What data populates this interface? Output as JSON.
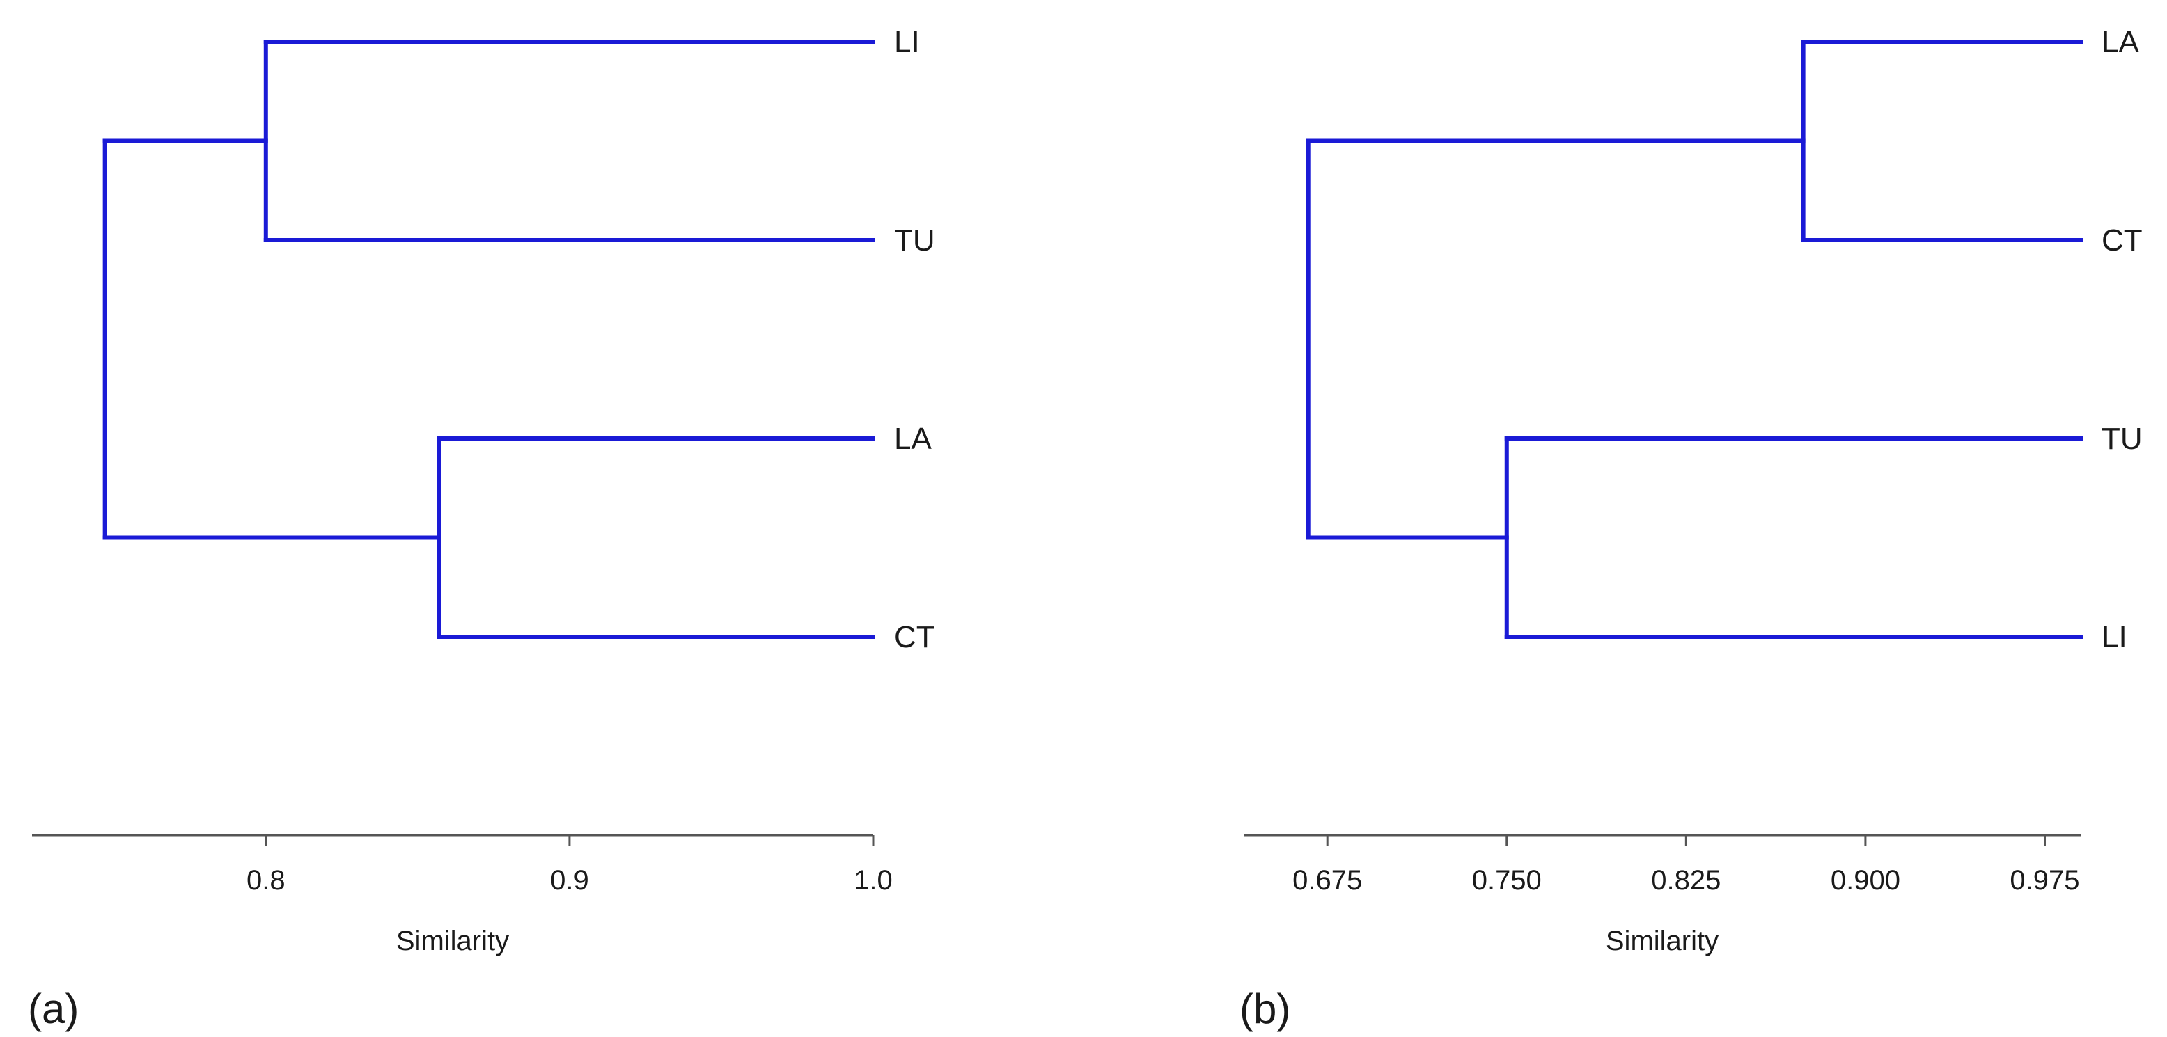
{
  "figure": {
    "line_color": "#1a1ad6",
    "axis_color": "#555555"
  },
  "chart_data": [
    {
      "type": "dendrogram",
      "panel_label": "(a)",
      "xlabel": "Similarity",
      "xlim": [
        0.723,
        1.0
      ],
      "ticks": [
        "0.8",
        "0.9",
        "1.0"
      ],
      "tick_values": [
        0.8,
        0.9,
        1.0
      ],
      "leaves": [
        "LI",
        "TU",
        "LA",
        "CT"
      ],
      "merges": [
        {
          "left": "LI",
          "right": "TU",
          "similarity": 0.8
        },
        {
          "left": "LA",
          "right": "CT",
          "similarity": 0.857
        },
        {
          "left": "LI+TU",
          "right": "LA+CT",
          "similarity": 0.747
        }
      ]
    },
    {
      "type": "dendrogram",
      "panel_label": "(b)",
      "xlabel": "Similarity",
      "xlim": [
        0.64,
        0.99
      ],
      "ticks": [
        "0.675",
        "0.750",
        "0.825",
        "0.900",
        "0.975"
      ],
      "tick_values": [
        0.675,
        0.75,
        0.825,
        0.9,
        0.975
      ],
      "leaves": [
        "LA",
        "CT",
        "TU",
        "LI"
      ],
      "merges": [
        {
          "left": "LA",
          "right": "CT",
          "similarity": 0.874
        },
        {
          "left": "TU",
          "right": "LI",
          "similarity": 0.75
        },
        {
          "left": "LA+CT",
          "right": "TU+LI",
          "similarity": 0.667
        }
      ]
    }
  ]
}
